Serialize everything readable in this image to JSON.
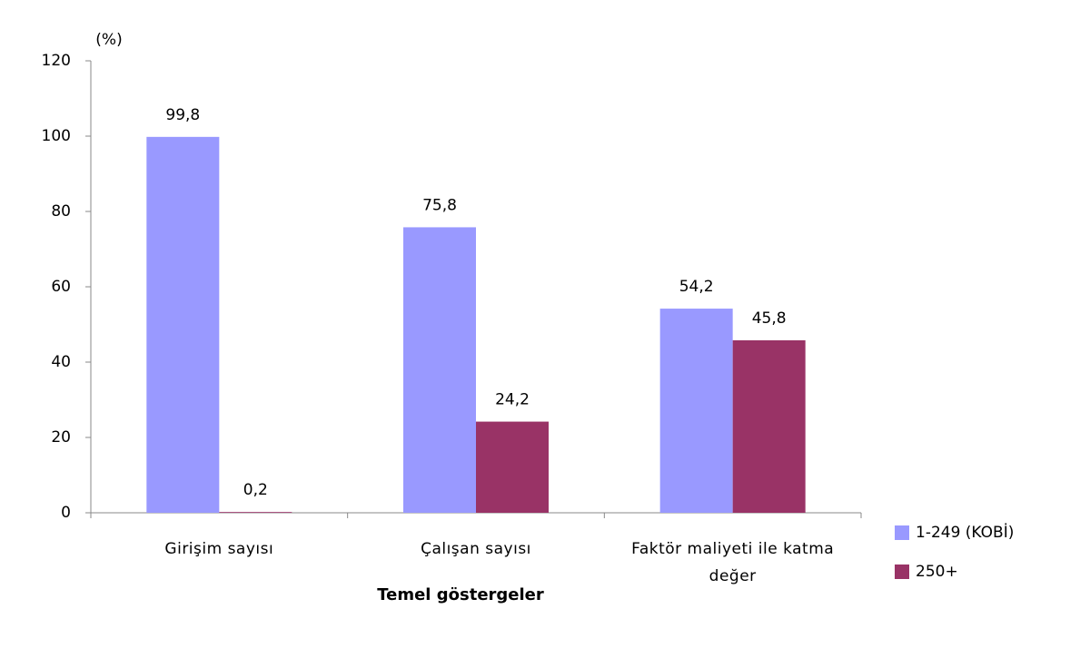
{
  "chart_data": {
    "type": "bar",
    "y_label": "(%)",
    "x_label": "Temel göstergeler",
    "categories": [
      "Girişim sayısı",
      "Çalışan sayısı",
      "Faktör maliyeti ile katma değer"
    ],
    "series": [
      {
        "name": "1-249 (KOBİ)",
        "color": "#9999ff",
        "values": [
          99.8,
          75.8,
          54.2
        ],
        "value_labels": [
          "99,8",
          "75,8",
          "54,2"
        ]
      },
      {
        "name": "250+",
        "color": "#993366",
        "values": [
          0.2,
          24.2,
          45.8
        ],
        "value_labels": [
          "0,2",
          "24,2",
          "45,8"
        ]
      }
    ],
    "ylim": [
      0,
      120
    ],
    "yticks": [
      0,
      20,
      40,
      60,
      80,
      100,
      120
    ],
    "grid": false,
    "legend": "right"
  }
}
